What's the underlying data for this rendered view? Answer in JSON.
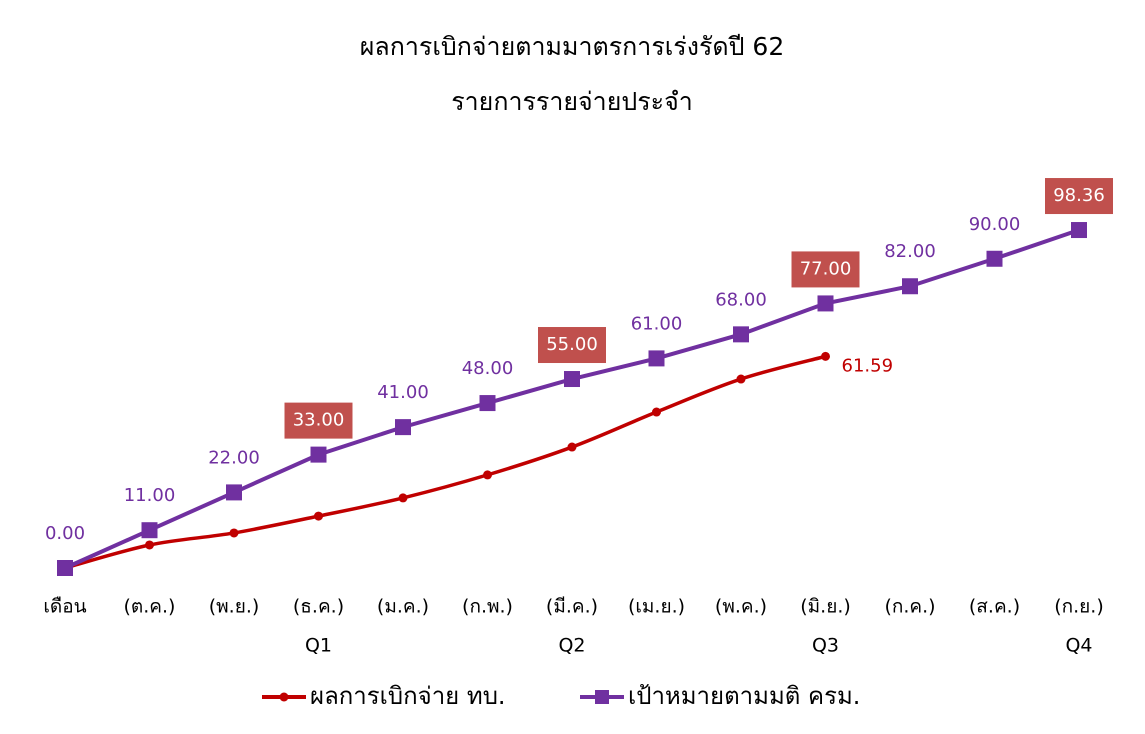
{
  "chart_data": {
    "type": "line",
    "title": "ผลการเบิกจ่ายตามมาตรการเร่งรัดปี 62",
    "subtitle": "รายการรายจ่ายประจำ",
    "categories": [
      "เดือน",
      "(ต.ค.)",
      "(พ.ย.)",
      "(ธ.ค.)",
      "(ม.ค.)",
      "(ก.พ.)",
      "(มี.ค.)",
      "(เม.ย.)",
      "(พ.ค.)",
      "(มิ.ย.)",
      "(ก.ค.)",
      "(ส.ค.)",
      "(ก.ย.)"
    ],
    "quarter_labels": [
      null,
      null,
      null,
      "Q1",
      null,
      null,
      "Q2",
      null,
      null,
      "Q3",
      null,
      null,
      "Q4"
    ],
    "ylim": [
      0,
      100
    ],
    "legend": "bottom",
    "series": [
      {
        "name": "ผลการเบิกจ่าย ทบ.",
        "color": "#c00000",
        "marker": "circle",
        "smooth": true,
        "values": [
          0,
          6.7,
          10.2,
          15.1,
          20.4,
          27.1,
          35.2,
          45.4,
          55.0,
          61.59,
          null,
          null,
          null
        ],
        "value_labels": [
          null,
          null,
          null,
          null,
          null,
          null,
          null,
          null,
          null,
          "61.59",
          null,
          null,
          null
        ]
      },
      {
        "name": "เป้าหมายตามมติ ครม.",
        "color": "#7030a0",
        "marker": "square",
        "smooth": false,
        "values": [
          0,
          11,
          22,
          33,
          41,
          48,
          55,
          61,
          68,
          77,
          82,
          90,
          98.36
        ],
        "value_labels": [
          "0.00",
          "11.00",
          "22.00",
          "33.00",
          "41.00",
          "48.00",
          "55.00",
          "61.00",
          "68.00",
          "77.00",
          "82.00",
          "90.00",
          "98.36"
        ],
        "highlighted": [
          3,
          6,
          9,
          12
        ],
        "highlight_color": "#c0504d"
      }
    ]
  }
}
